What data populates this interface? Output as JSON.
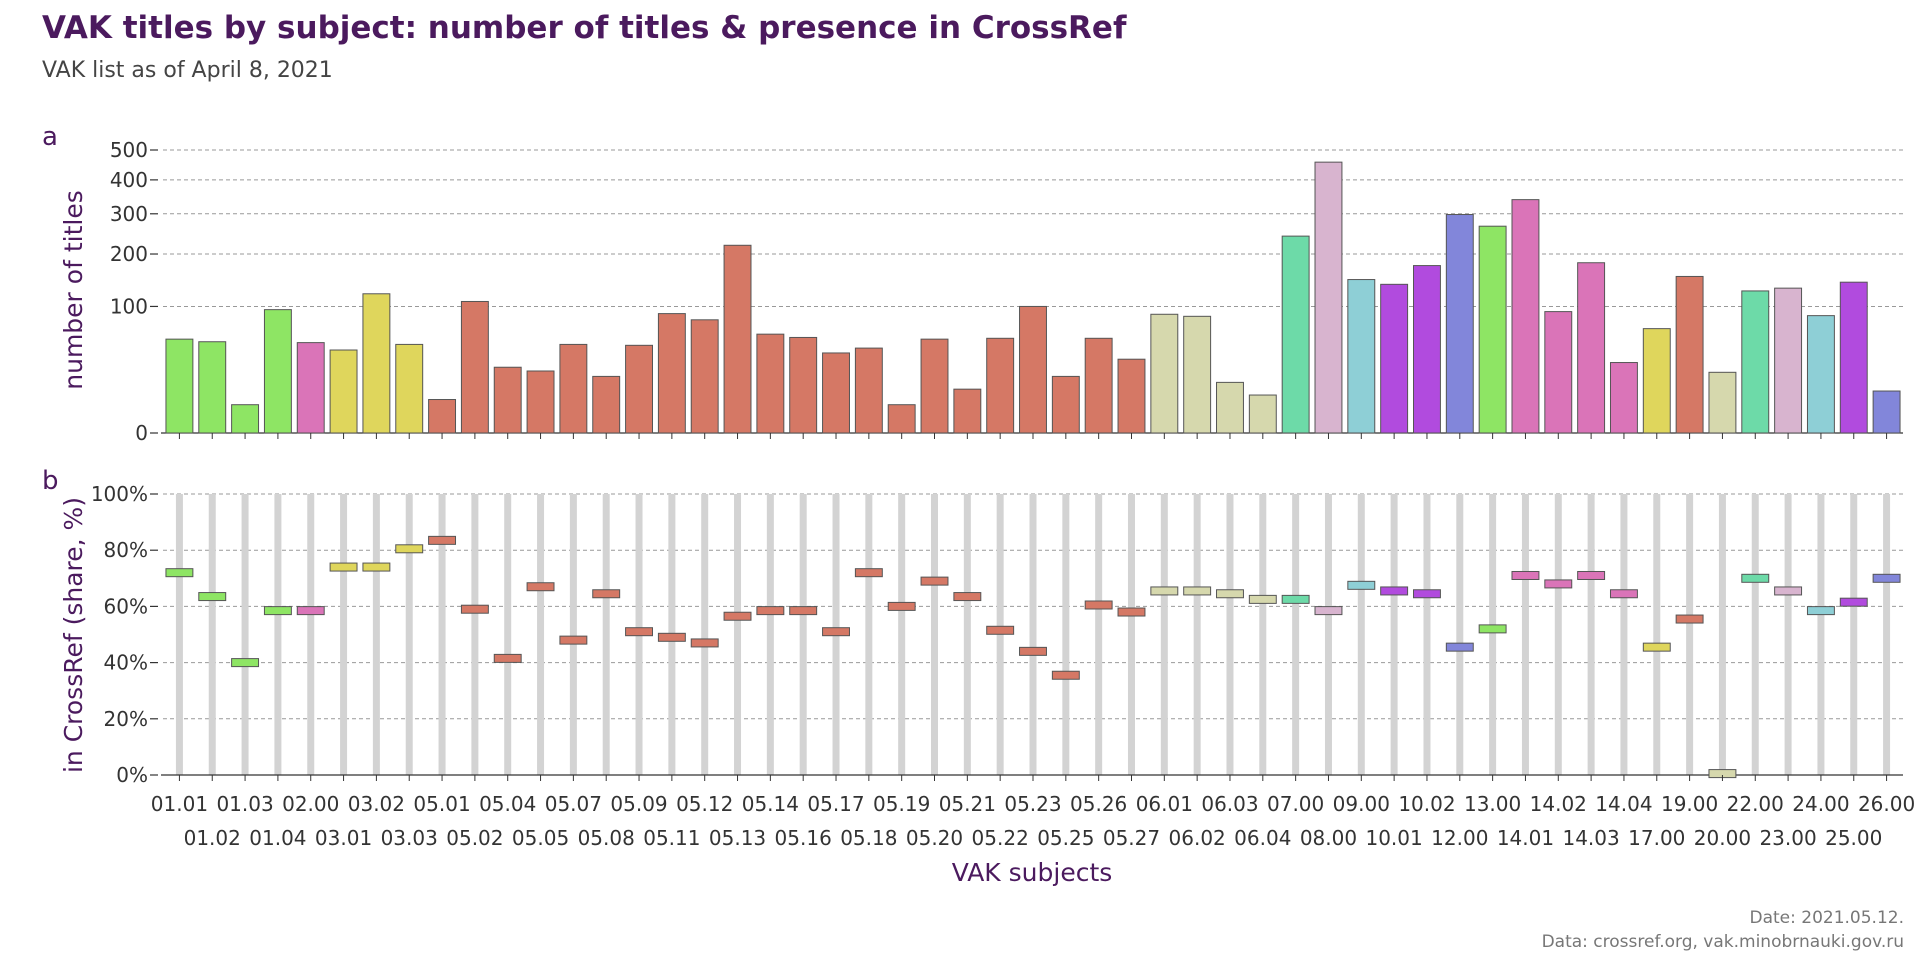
{
  "title": "VAK titles by subject: number of titles & presence in CrossRef",
  "subtitle": "VAK list as of April 8, 2021",
  "caption": {
    "date": "Date: 2021.05.12.",
    "source": "Data: crossref.org, vak.minobrnauki.gov.ru"
  },
  "colors": {
    "text_dark": "#4b1a5e",
    "grid": "#999999",
    "stem": "#d3d3d3",
    "groups": {
      "01": "#8ee564",
      "02": "#da74b8",
      "03": "#dfd65c",
      "05": "#d57865",
      "06": "#d6d8ad",
      "07": "#6ddaa8",
      "08": "#d8b4cf",
      "09": "#8ecfd6",
      "10": "#b14bde",
      "12": "#8286da",
      "13": "#8ee564",
      "14": "#da74b8",
      "17": "#dfd65c",
      "19": "#d57865",
      "20": "#d6d8ad",
      "22": "#6ddaa8",
      "23": "#d8b4cf",
      "24": "#8ecfd6",
      "25": "#b14bde",
      "26": "#8286da"
    }
  },
  "chart_data": [
    {
      "panel_label": "a",
      "type": "bar",
      "scale": "sqrt",
      "ylabel": "number of titles",
      "yticks": [
        0,
        100,
        200,
        300,
        400,
        500
      ],
      "ylim": [
        0,
        500
      ],
      "grid": true,
      "categories": [
        "01.01",
        "01.02",
        "01.03",
        "01.04",
        "02.00",
        "03.01",
        "03.02",
        "03.03",
        "05.01",
        "05.02",
        "05.04",
        "05.05",
        "05.07",
        "05.08",
        "05.09",
        "05.11",
        "05.12",
        "05.13",
        "05.14",
        "05.16",
        "05.17",
        "05.18",
        "05.19",
        "05.20",
        "05.21",
        "05.22",
        "05.23",
        "05.25",
        "05.26",
        "05.27",
        "06.01",
        "06.02",
        "06.03",
        "06.04",
        "07.00",
        "08.00",
        "09.00",
        "10.01",
        "10.02",
        "12.00",
        "13.00",
        "14.01",
        "14.02",
        "14.03",
        "14.04",
        "17.00",
        "19.00",
        "20.00",
        "22.00",
        "23.00",
        "24.00",
        "25.00",
        "26.00"
      ],
      "values": [
        55,
        52,
        5,
        95,
        51,
        43,
        121,
        49,
        7,
        108,
        27,
        24,
        49,
        20,
        48,
        89,
        80,
        220,
        61,
        57,
        40,
        45,
        5,
        55,
        12,
        56,
        100,
        20,
        56,
        34,
        88,
        85,
        16,
        9,
        242,
        458,
        147,
        138,
        175,
        298,
        267,
        340,
        92,
        181,
        31,
        68,
        153,
        23,
        126,
        131,
        86,
        142,
        11
      ]
    },
    {
      "panel_label": "b",
      "type": "dot",
      "ylabel": "in CrossRef (share, %)",
      "xlabel": "VAK subjects",
      "yticks": [
        "0%",
        "20%",
        "40%",
        "60%",
        "80%",
        "100%"
      ],
      "ylim": [
        0,
        100
      ],
      "grid": true,
      "categories": [
        "01.01",
        "01.02",
        "01.03",
        "01.04",
        "02.00",
        "03.01",
        "03.02",
        "03.03",
        "05.01",
        "05.02",
        "05.04",
        "05.05",
        "05.07",
        "05.08",
        "05.09",
        "05.11",
        "05.12",
        "05.13",
        "05.14",
        "05.16",
        "05.17",
        "05.18",
        "05.19",
        "05.20",
        "05.21",
        "05.22",
        "05.23",
        "05.25",
        "05.26",
        "05.27",
        "06.01",
        "06.02",
        "06.03",
        "06.04",
        "07.00",
        "08.00",
        "09.00",
        "10.01",
        "10.02",
        "12.00",
        "13.00",
        "14.01",
        "14.02",
        "14.03",
        "14.04",
        "17.00",
        "19.00",
        "20.00",
        "22.00",
        "23.00",
        "24.00",
        "25.00",
        "26.00"
      ],
      "values": [
        72,
        63.5,
        40,
        58.5,
        58.5,
        74,
        74,
        80.5,
        83.5,
        59,
        41.5,
        67,
        48,
        64.5,
        51,
        49,
        47,
        56.5,
        58.5,
        58.5,
        51,
        72,
        60,
        69,
        63.5,
        51.5,
        44,
        35.5,
        60.5,
        58,
        65.5,
        65.5,
        64.5,
        62.5,
        62.5,
        58.5,
        67.5,
        65.5,
        64.5,
        45.5,
        52,
        71,
        68,
        71,
        64.5,
        45.5,
        55.5,
        0.5,
        70,
        65.5,
        58.5,
        61.5,
        70
      ]
    }
  ]
}
